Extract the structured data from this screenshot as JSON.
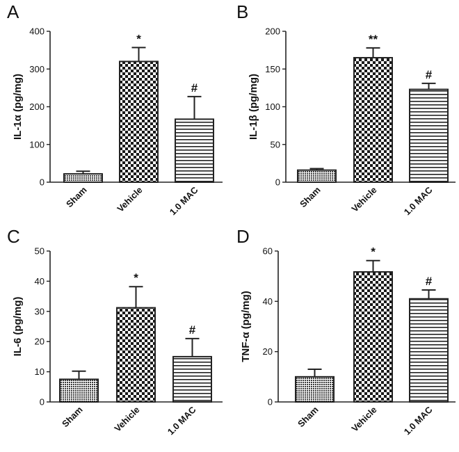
{
  "chart_data": [
    {
      "panel": "A",
      "type": "bar",
      "ylabel": "IL-1α  (pg/mg)",
      "categories": [
        "Sham",
        "Vehicle",
        "1.0 MAC"
      ],
      "values": [
        22,
        320,
        167
      ],
      "errors": [
        7,
        37,
        60
      ],
      "annotations": [
        "",
        "*",
        "#"
      ],
      "patterns": [
        "dots",
        "checker",
        "hlines"
      ],
      "ylim": [
        0,
        400
      ],
      "yticks": [
        0,
        100,
        200,
        300,
        400
      ]
    },
    {
      "panel": "B",
      "type": "bar",
      "ylabel": "IL-1β  (pg/mg)",
      "categories": [
        "Sham",
        "Vehicle",
        "1.0 MAC"
      ],
      "values": [
        16,
        165,
        123
      ],
      "errors": [
        2,
        13,
        8
      ],
      "annotations": [
        "",
        "**",
        "#"
      ],
      "patterns": [
        "dots",
        "checker",
        "hlines"
      ],
      "ylim": [
        0,
        200
      ],
      "yticks": [
        0,
        50,
        100,
        150,
        200
      ]
    },
    {
      "panel": "C",
      "type": "bar",
      "ylabel": "IL-6  (pg/mg)",
      "categories": [
        "Sham",
        "Vehicle",
        "1.0 MAC"
      ],
      "values": [
        7.5,
        31.2,
        15
      ],
      "errors": [
        2.7,
        7,
        6
      ],
      "annotations": [
        "",
        "*",
        "#"
      ],
      "patterns": [
        "dots",
        "checker",
        "hlines"
      ],
      "ylim": [
        0,
        50
      ],
      "yticks": [
        0,
        10,
        20,
        30,
        40,
        50
      ]
    },
    {
      "panel": "D",
      "type": "bar",
      "ylabel": "TNF-α  (pg/mg)",
      "categories": [
        "Sham",
        "Vehicle",
        "1.0 MAC"
      ],
      "values": [
        10,
        51.7,
        41
      ],
      "errors": [
        3,
        4.5,
        3.5
      ],
      "annotations": [
        "",
        "*",
        "#"
      ],
      "patterns": [
        "dots",
        "checker",
        "hlines"
      ],
      "ylim": [
        0,
        60
      ],
      "yticks": [
        0,
        20,
        40,
        60
      ]
    }
  ]
}
